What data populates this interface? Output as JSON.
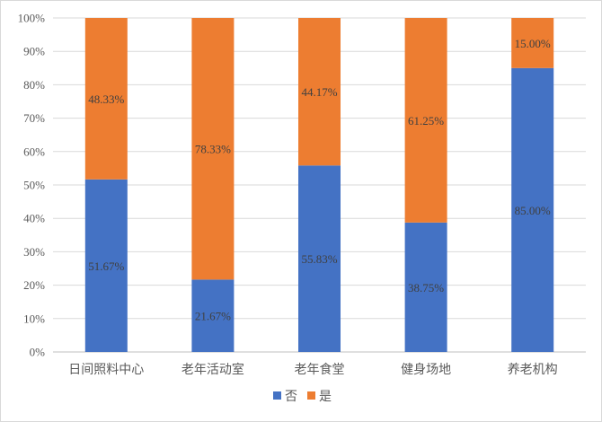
{
  "chart_data": {
    "type": "bar",
    "stacked": true,
    "percent_stacked": true,
    "categories": [
      "日间照料中心",
      "老年活动室",
      "老年食堂",
      "健身场地",
      "养老机构"
    ],
    "series": [
      {
        "name": "否",
        "color": "#4472C4",
        "values": [
          51.67,
          21.67,
          55.83,
          38.75,
          85.0
        ],
        "labels": [
          "51.67%",
          "21.67%",
          "55.83%",
          "38.75%",
          "85.00%"
        ]
      },
      {
        "name": "是",
        "color": "#ED7D31",
        "values": [
          48.33,
          78.33,
          44.17,
          61.25,
          15.0
        ],
        "labels": [
          "48.33%",
          "78.33%",
          "44.17%",
          "61.25%",
          "15.00%"
        ]
      }
    ],
    "ylim": [
      0,
      100
    ],
    "yticks": [
      "0%",
      "10%",
      "20%",
      "30%",
      "40%",
      "50%",
      "60%",
      "70%",
      "80%",
      "90%",
      "100%"
    ],
    "grid": true,
    "legend": "bottom",
    "title": "",
    "xlabel": "",
    "ylabel": ""
  }
}
